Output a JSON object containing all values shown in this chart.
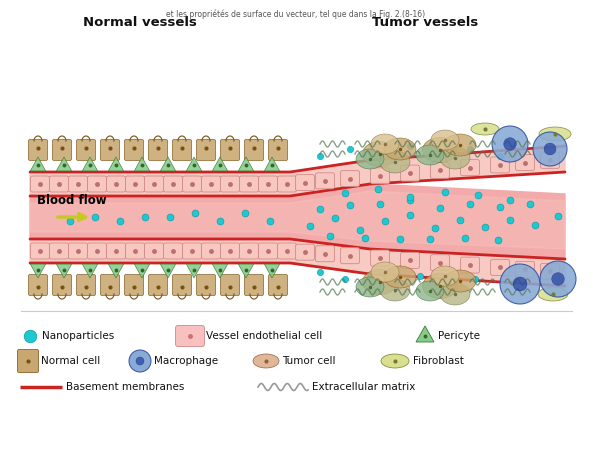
{
  "title_top": "et les propriétés de surface du vecteur, tel que dans la Fig. 2.(8-16)",
  "label_normal_vessels": "Normal vessels",
  "label_tumor_vessels": "Tumor vessels",
  "label_blood_flow": "Blood flow",
  "background_color": "#ffffff",
  "vessel_color": "#f2aaaa",
  "vessel_wall_color": "#f7c8c0",
  "vessel_border_color": "#cc2222",
  "lumen_color": "#f0a8a0",
  "nanoparticle_color": "#1ec8d0",
  "nanoparticle_edge": "#0899a8",
  "pericyte_color": "#88cc88",
  "pericyte_edge": "#3a7a3a",
  "endothelial_color": "#f9c8c0",
  "endothelial_edge": "#cc8888",
  "normal_cell_color": "#c8a870",
  "normal_cell_edge": "#7a5010",
  "macrophage_color": "#88aad4",
  "macrophage_edge": "#3050a0",
  "tumor_cell_color": "#e0b898",
  "tumor_cell_edge": "#906040",
  "fibroblast_color": "#d8e090",
  "fibroblast_edge": "#787830",
  "wavy_color": "#999999",
  "blood_flow_color": "#c8c820",
  "blood_flow_text_color": "#000000",
  "label_color": "#111111",
  "legend_separator_color": "#cccccc"
}
